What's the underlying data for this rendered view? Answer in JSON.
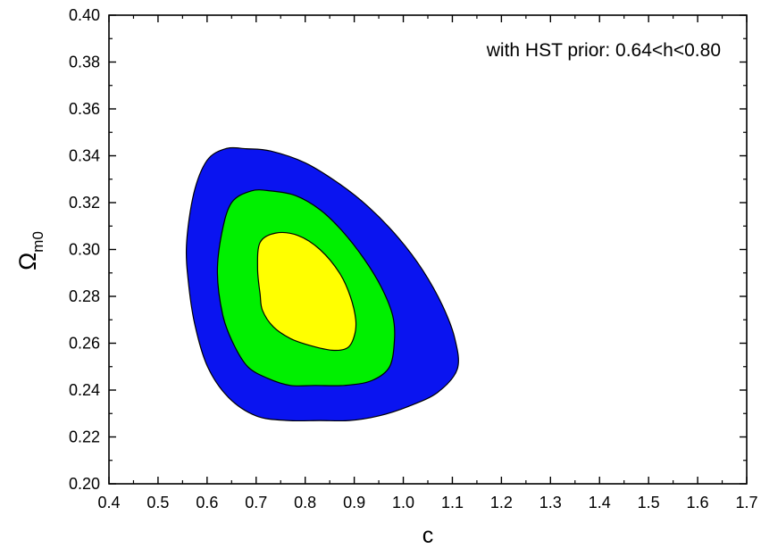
{
  "chart_data": {
    "type": "contour",
    "xlabel": "c",
    "ylabel": {
      "main": "Ω",
      "sub": "m0"
    },
    "xlim": [
      0.4,
      1.7
    ],
    "ylim": [
      0.2,
      0.4
    ],
    "x_major_ticks": [
      0.4,
      0.5,
      0.6,
      0.7,
      0.8,
      0.9,
      1.0,
      1.1,
      1.2,
      1.3,
      1.4,
      1.5,
      1.6,
      1.7
    ],
    "x_tick_labels": [
      "0.4",
      "0.5",
      "0.6",
      "0.7",
      "0.8",
      "0.9",
      "1.0",
      "1.1",
      "1.2",
      "1.3",
      "1.4",
      "1.5",
      "1.6",
      "1.7"
    ],
    "y_major_ticks": [
      0.2,
      0.22,
      0.24,
      0.26,
      0.28,
      0.3,
      0.32,
      0.34,
      0.36,
      0.38,
      0.4
    ],
    "y_tick_labels": [
      "0.20",
      "0.22",
      "0.24",
      "0.26",
      "0.28",
      "0.30",
      "0.32",
      "0.34",
      "0.36",
      "0.38",
      "0.40"
    ],
    "annotation": "with HST prior: 0.64<h<0.80",
    "grid": false,
    "colors": {
      "outer": "#0a14f0",
      "middle": "#00f000",
      "inner": "#ffff00",
      "outline": "#000000"
    },
    "contours": [
      {
        "level": "outer",
        "color": "#0a14f0",
        "points": [
          [
            0.638,
            0.343
          ],
          [
            0.6,
            0.338
          ],
          [
            0.573,
            0.324
          ],
          [
            0.558,
            0.302
          ],
          [
            0.563,
            0.284
          ],
          [
            0.576,
            0.267
          ],
          [
            0.601,
            0.25
          ],
          [
            0.643,
            0.237
          ],
          [
            0.7,
            0.229
          ],
          [
            0.765,
            0.227
          ],
          [
            0.83,
            0.227
          ],
          [
            0.89,
            0.227
          ],
          [
            0.95,
            0.229
          ],
          [
            1.01,
            0.233
          ],
          [
            1.07,
            0.239
          ],
          [
            1.11,
            0.249
          ],
          [
            1.105,
            0.262
          ],
          [
            1.08,
            0.276
          ],
          [
            1.04,
            0.291
          ],
          [
            0.99,
            0.305
          ],
          [
            0.93,
            0.318
          ],
          [
            0.87,
            0.328
          ],
          [
            0.8,
            0.337
          ],
          [
            0.73,
            0.342
          ],
          [
            0.68,
            0.343
          ]
        ]
      },
      {
        "level": "middle",
        "color": "#00f000",
        "points": [
          [
            0.69,
            0.325
          ],
          [
            0.65,
            0.32
          ],
          [
            0.63,
            0.307
          ],
          [
            0.621,
            0.29
          ],
          [
            0.632,
            0.272
          ],
          [
            0.653,
            0.26
          ],
          [
            0.683,
            0.25
          ],
          [
            0.724,
            0.245
          ],
          [
            0.77,
            0.242
          ],
          [
            0.82,
            0.242
          ],
          [
            0.88,
            0.242
          ],
          [
            0.935,
            0.244
          ],
          [
            0.972,
            0.25
          ],
          [
            0.982,
            0.262
          ],
          [
            0.978,
            0.272
          ],
          [
            0.955,
            0.284
          ],
          [
            0.92,
            0.296
          ],
          [
            0.875,
            0.308
          ],
          [
            0.83,
            0.317
          ],
          [
            0.78,
            0.323
          ],
          [
            0.73,
            0.325
          ]
        ]
      },
      {
        "level": "inner",
        "color": "#ffff00",
        "points": [
          [
            0.74,
            0.307
          ],
          [
            0.708,
            0.303
          ],
          [
            0.703,
            0.292
          ],
          [
            0.708,
            0.281
          ],
          [
            0.713,
            0.274
          ],
          [
            0.735,
            0.267
          ],
          [
            0.77,
            0.262
          ],
          [
            0.81,
            0.259
          ],
          [
            0.855,
            0.257
          ],
          [
            0.886,
            0.258
          ],
          [
            0.9,
            0.263
          ],
          [
            0.903,
            0.27
          ],
          [
            0.892,
            0.28
          ],
          [
            0.87,
            0.29
          ],
          [
            0.83,
            0.3
          ],
          [
            0.785,
            0.306
          ]
        ]
      }
    ]
  }
}
